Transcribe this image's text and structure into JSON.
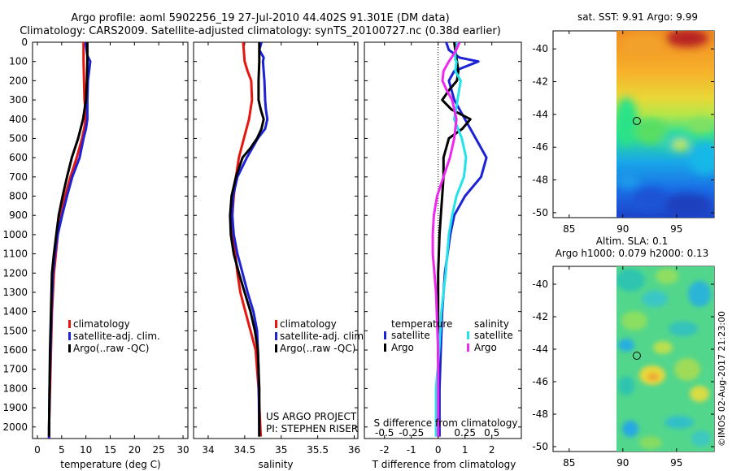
{
  "title": {
    "line1": "Argo profile: aoml 5902256_19 27-Jul-2010 44.402S 91.301E (DM data)",
    "line2": "Climatology: CARS2009. Satellite-adjusted climatology: synTS_20100727.nc (0.38d earlier)"
  },
  "colors": {
    "climatology": "#e8150e",
    "satellite": "#1c22d6",
    "argo": "#000000",
    "salinity_sat": "#22e3ea",
    "salinity_argo": "#ee28ee"
  },
  "side_label": "©IMOS 02-Aug-2017 21:23:00",
  "chart_data": [
    {
      "id": "temperature",
      "type": "line",
      "xlabel": "temperature (deg C)",
      "ylabel": "",
      "xlim": [
        -1,
        31
      ],
      "ylim": [
        2060,
        0
      ],
      "xticks": [
        0,
        5,
        10,
        15,
        20,
        25,
        30
      ],
      "xticklabels": [
        "0",
        "5",
        "10",
        "15",
        "20",
        "25",
        "30"
      ],
      "yticks": [
        0,
        100,
        200,
        300,
        400,
        500,
        600,
        700,
        800,
        900,
        1000,
        1100,
        1200,
        1300,
        1400,
        1500,
        1600,
        1700,
        1800,
        1900,
        2000
      ],
      "yticklabels": [
        "0",
        "100",
        "200",
        "300",
        "400",
        "500",
        "600",
        "700",
        "800",
        "900",
        "1000",
        "1100",
        "1200",
        "1300",
        "1400",
        "1500",
        "1600",
        "1700",
        "1800",
        "1900",
        "2000"
      ],
      "legend": [
        "climatology",
        "satellite-adj. clim.",
        "Argo(..raw -QC)"
      ],
      "series": [
        {
          "name": "climatology",
          "color": "#e8150e",
          "x": [
            9.5,
            9.5,
            9.6,
            9.7,
            9.9,
            9.9,
            9.7,
            9.2,
            8.1,
            6.8,
            5.7,
            4.9,
            4.2,
            3.8,
            3.4,
            3.0,
            2.8,
            2.6,
            2.5,
            2.4,
            2.4
          ],
          "y": [
            0,
            100,
            200,
            300,
            350,
            400,
            440,
            500,
            600,
            700,
            800,
            900,
            1000,
            1100,
            1200,
            1400,
            1600,
            1800,
            1900,
            2000,
            2060
          ]
        },
        {
          "name": "satellite-adj. clim.",
          "color": "#1c22d6",
          "x": [
            9.9,
            10.3,
            10.9,
            10.4,
            10.3,
            10.3,
            10.0,
            9.5,
            8.7,
            7.2,
            6.1,
            5.1,
            4.2,
            3.6,
            3.2,
            2.9,
            2.7,
            2.5,
            2.4,
            2.4
          ],
          "y": [
            0,
            70,
            100,
            200,
            300,
            400,
            450,
            500,
            600,
            700,
            800,
            900,
            1000,
            1100,
            1200,
            1400,
            1600,
            1800,
            2000,
            2060
          ]
        },
        {
          "name": "Argo(..raw -QC)",
          "color": "#000000",
          "x": [
            10.3,
            10.3,
            10.2,
            10.0,
            9.4,
            8.4,
            7.1,
            6.1,
            5.2,
            4.4,
            3.9,
            3.4,
            3.0,
            2.8,
            2.6,
            2.5,
            2.4
          ],
          "y": [
            0,
            100,
            200,
            300,
            400,
            500,
            600,
            700,
            800,
            900,
            1000,
            1100,
            1200,
            1400,
            1600,
            1800,
            2050
          ]
        }
      ]
    },
    {
      "id": "salinity",
      "type": "line",
      "xlabel": "salinity",
      "ylabel": "",
      "xlim": [
        33.8,
        36.05
      ],
      "ylim": [
        2060,
        0
      ],
      "xticks": [
        34,
        34.5,
        35,
        35.5,
        36
      ],
      "xticklabels": [
        "34",
        "34.5",
        "35",
        "35.5",
        "36"
      ],
      "legend": [
        "climatology",
        "satellite-adj. clim.",
        "Argo(..raw -QC)"
      ],
      "annotation": [
        "US ARGO PROJECT",
        "PI: STEPHEN RISER"
      ],
      "series": [
        {
          "name": "climatology",
          "color": "#e8150e",
          "x": [
            34.48,
            34.5,
            34.54,
            34.59,
            34.6,
            34.56,
            34.49,
            34.42,
            34.38,
            34.35,
            34.33,
            34.34,
            34.37,
            34.4,
            34.44,
            34.51,
            34.58,
            34.65,
            34.69,
            34.72
          ],
          "y": [
            0,
            100,
            150,
            200,
            300,
            400,
            500,
            600,
            700,
            800,
            900,
            1000,
            1100,
            1200,
            1300,
            1400,
            1500,
            1600,
            1800,
            2050
          ]
        },
        {
          "name": "satellite-adj. clim.",
          "color": "#1c22d6",
          "x": [
            34.73,
            34.7,
            34.76,
            34.75,
            34.77,
            34.78,
            34.79,
            34.81,
            34.78,
            34.68,
            34.53,
            34.4,
            34.34,
            34.33,
            34.35,
            34.4,
            34.47,
            34.54,
            34.62,
            34.67,
            34.69,
            34.7
          ],
          "y": [
            0,
            40,
            80,
            100,
            200,
            300,
            350,
            400,
            450,
            500,
            600,
            700,
            800,
            900,
            1000,
            1100,
            1200,
            1300,
            1400,
            1500,
            1700,
            2050
          ]
        },
        {
          "name": "Argo(..raw -QC)",
          "color": "#000000",
          "x": [
            34.7,
            34.7,
            34.69,
            34.69,
            34.72,
            34.76,
            34.73,
            34.67,
            34.58,
            34.47,
            34.38,
            34.32,
            34.3,
            34.31,
            34.35,
            34.42,
            34.5,
            34.58,
            34.64,
            34.68,
            34.7,
            34.7
          ],
          "y": [
            0,
            100,
            200,
            300,
            350,
            400,
            450,
            500,
            550,
            600,
            700,
            800,
            900,
            1000,
            1100,
            1200,
            1300,
            1400,
            1500,
            1600,
            1800,
            2050
          ]
        }
      ]
    },
    {
      "id": "difference",
      "type": "line",
      "xlabel": "T difference from climatology",
      "xlabel_top": "S difference from climatology",
      "xlim": [
        -2.75,
        3.1
      ],
      "ylim": [
        2060,
        0
      ],
      "xticks": [
        -2,
        -1,
        0,
        1,
        2
      ],
      "xticklabels": [
        "-2",
        "-1",
        "0",
        "1",
        "2"
      ],
      "sticks": [
        -0.5,
        -0.25,
        0,
        0.25,
        0.5
      ],
      "sticklabels": [
        "-0.5",
        "-0.25",
        "0",
        "0.25",
        "0.5"
      ],
      "legend_temperature_title": "temperature",
      "legend_salinity_title": "salinity",
      "legend_temperature": [
        "satellite",
        "Argo"
      ],
      "legend_salinity": [
        "satellite",
        "Argo"
      ],
      "series": [
        {
          "name": "temperature satellite",
          "color": "#1c22d6",
          "x": [
            0.3,
            0.4,
            0.8,
            1.5,
            0.6,
            0.4,
            0.6,
            1.0,
            1.4,
            1.8,
            1.6,
            1.0,
            0.6,
            0.45,
            0.35,
            0.25,
            0.15,
            0.1,
            0.05,
            0.05
          ],
          "y": [
            0,
            40,
            80,
            100,
            150,
            200,
            300,
            400,
            500,
            600,
            700,
            800,
            900,
            1000,
            1100,
            1200,
            1400,
            1600,
            1800,
            2050
          ]
        },
        {
          "name": "temperature Argo",
          "color": "#000000",
          "x": [
            0.6,
            0.7,
            0.75,
            0.7,
            0.4,
            0.15,
            0.5,
            1.2,
            0.9,
            0.4,
            0.2,
            0.2,
            0.15,
            0.1,
            0.05,
            0.0,
            0.0,
            0.0
          ],
          "y": [
            0,
            100,
            150,
            200,
            250,
            300,
            350,
            400,
            450,
            500,
            600,
            700,
            800,
            900,
            1000,
            1200,
            1600,
            2050
          ]
        },
        {
          "name": "salinity satellite",
          "color": "#22e3ea",
          "x": [
            0.18,
            0.16,
            0.16,
            0.17,
            0.16,
            0.21,
            0.18,
            0.15,
            0.22,
            0.26,
            0.24,
            0.17,
            0.13,
            0.1,
            0.07,
            0.03,
            0.01,
            -0.02,
            -0.02
          ],
          "y": [
            0,
            60,
            90,
            100,
            150,
            200,
            300,
            400,
            500,
            600,
            700,
            800,
            900,
            1000,
            1200,
            1400,
            1600,
            1800,
            2050
          ]
        },
        {
          "name": "salinity Argo",
          "color": "#ee28ee",
          "x": [
            0.2,
            0.16,
            0.1,
            0.05,
            0.04,
            0.08,
            0.13,
            0.17,
            0.15,
            0.11,
            0.05,
            -0.01,
            -0.04,
            -0.05,
            -0.05,
            -0.02,
            0.0,
            0.0
          ],
          "y": [
            0,
            50,
            100,
            150,
            200,
            250,
            300,
            400,
            500,
            600,
            700,
            800,
            900,
            1000,
            1100,
            1300,
            1600,
            2050
          ]
        }
      ]
    },
    {
      "id": "sst_map",
      "type": "heatmap",
      "title": "sat. SST: 9.91  Argo: 9.99",
      "xlim": [
        83.5,
        98.5
      ],
      "ylim": [
        -50.3,
        -38.9
      ],
      "xticks": [
        85,
        90,
        95
      ],
      "xticklabels": [
        "85",
        "90",
        "95"
      ],
      "yticks": [
        -40,
        -42,
        -44,
        -46,
        -48,
        -50
      ],
      "yticklabels": [
        "-40",
        "-42",
        "-44",
        "-46",
        "-48",
        "-50"
      ],
      "data_lon_start": 90,
      "argo_point": [
        91.3,
        -44.4
      ]
    },
    {
      "id": "sla_map",
      "type": "heatmap",
      "title": "Altim. SLA: 0.1",
      "subtitle": "Argo h1000: 0.079 h2000: 0.13",
      "xlim": [
        83.5,
        98.5
      ],
      "ylim": [
        -50.3,
        -38.9
      ],
      "xticks": [
        85,
        90,
        95
      ],
      "xticklabels": [
        "85",
        "90",
        "95"
      ],
      "yticks": [
        -40,
        -42,
        -44,
        -46,
        -48,
        -50
      ],
      "yticklabels": [
        "-40",
        "-42",
        "-44",
        "-46",
        "-48",
        "-50"
      ],
      "data_lon_start": 90,
      "argo_point": [
        91.3,
        -44.4
      ]
    }
  ]
}
